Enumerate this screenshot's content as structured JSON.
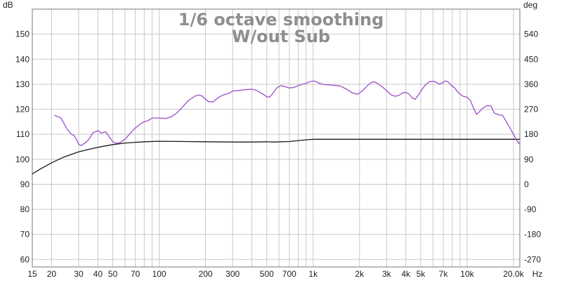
{
  "chart_data": {
    "type": "line",
    "title": "1/6 octave smoothing",
    "subtitle": "W/out Sub",
    "x_scale": "log",
    "xlim": [
      15,
      22000
    ],
    "ylim": [
      57,
      160
    ],
    "y2lim": [
      -297,
      630
    ],
    "y_unit": "dB",
    "y2_unit": "deg",
    "x_unit": "Hz",
    "grid": true,
    "x_ticks": [
      {
        "v": 15,
        "label": "15"
      },
      {
        "v": 20,
        "label": "20"
      },
      {
        "v": 30,
        "label": "30"
      },
      {
        "v": 40,
        "label": "40"
      },
      {
        "v": 50,
        "label": "50"
      },
      {
        "v": 70,
        "label": "70"
      },
      {
        "v": 100,
        "label": "100"
      },
      {
        "v": 200,
        "label": "200"
      },
      {
        "v": 300,
        "label": "300"
      },
      {
        "v": 500,
        "label": "500"
      },
      {
        "v": 700,
        "label": "700"
      },
      {
        "v": 1000,
        "label": "1k"
      },
      {
        "v": 2000,
        "label": "2k"
      },
      {
        "v": 3000,
        "label": "3k"
      },
      {
        "v": 4000,
        "label": "4k"
      },
      {
        "v": 5000,
        "label": "5k"
      },
      {
        "v": 7000,
        "label": "7k"
      },
      {
        "v": 10000,
        "label": "10k"
      },
      {
        "v": 20000,
        "label": "20.0k"
      }
    ],
    "x_grid": [
      15,
      20,
      30,
      40,
      50,
      60,
      70,
      80,
      90,
      100,
      200,
      300,
      400,
      500,
      600,
      700,
      800,
      900,
      1000,
      2000,
      3000,
      4000,
      5000,
      6000,
      7000,
      8000,
      9000,
      10000,
      20000
    ],
    "y_ticks": [
      {
        "v": 150,
        "label": "150"
      },
      {
        "v": 140,
        "label": "140"
      },
      {
        "v": 130,
        "label": "130"
      },
      {
        "v": 120,
        "label": "120"
      },
      {
        "v": 110,
        "label": "110"
      },
      {
        "v": 100,
        "label": "100"
      },
      {
        "v": 90,
        "label": "90"
      },
      {
        "v": 80,
        "label": "80"
      },
      {
        "v": 70,
        "label": "70"
      },
      {
        "v": 60,
        "label": "60"
      }
    ],
    "y2_ticks": [
      {
        "v": 540,
        "label": "540"
      },
      {
        "v": 450,
        "label": "450"
      },
      {
        "v": 360,
        "label": "360"
      },
      {
        "v": 270,
        "label": "270"
      },
      {
        "v": 180,
        "label": "180"
      },
      {
        "v": 90,
        "label": "90"
      },
      {
        "v": 0,
        "label": "0"
      },
      {
        "v": -90,
        "label": "-90"
      },
      {
        "v": -180,
        "label": "-180"
      },
      {
        "v": -270,
        "label": "-270"
      }
    ],
    "series": [
      {
        "axis": "left",
        "color": "#1a1a1a",
        "points": [
          [
            15,
            94.2
          ],
          [
            17,
            96.2
          ],
          [
            20,
            98.6
          ],
          [
            24,
            100.9
          ],
          [
            30,
            103.0
          ],
          [
            35,
            104.0
          ],
          [
            40,
            104.8
          ],
          [
            50,
            105.9
          ],
          [
            60,
            106.5
          ],
          [
            70,
            106.8
          ],
          [
            80,
            107.0
          ],
          [
            100,
            107.2
          ],
          [
            150,
            107.1
          ],
          [
            200,
            107.0
          ],
          [
            300,
            106.9
          ],
          [
            400,
            106.9
          ],
          [
            500,
            107.0
          ],
          [
            550,
            106.9
          ],
          [
            700,
            107.1
          ],
          [
            800,
            107.5
          ],
          [
            900,
            107.8
          ],
          [
            1000,
            108.0
          ],
          [
            2000,
            108.0
          ],
          [
            5000,
            108.0
          ],
          [
            10000,
            108.0
          ],
          [
            20000,
            108.0
          ],
          [
            22000,
            108.0
          ]
        ]
      },
      {
        "axis": "left",
        "color": "#9a4fc8",
        "points": [
          [
            21,
            117.5
          ],
          [
            22,
            117.0
          ],
          [
            23,
            116.5
          ],
          [
            24,
            114.5
          ],
          [
            25,
            112.5
          ],
          [
            26,
            111.0
          ],
          [
            27,
            110.0
          ],
          [
            28,
            109.5
          ],
          [
            29,
            108.0
          ],
          [
            30,
            106.0
          ],
          [
            31,
            105.5
          ],
          [
            33,
            106.5
          ],
          [
            35,
            108.0
          ],
          [
            37,
            110.5
          ],
          [
            40,
            111.5
          ],
          [
            42,
            110.5
          ],
          [
            45,
            111.0
          ],
          [
            48,
            108.5
          ],
          [
            50,
            107.0
          ],
          [
            52,
            106.5
          ],
          [
            55,
            106.5
          ],
          [
            60,
            108.0
          ],
          [
            65,
            110.5
          ],
          [
            70,
            112.5
          ],
          [
            75,
            114.0
          ],
          [
            80,
            115.0
          ],
          [
            85,
            115.5
          ],
          [
            90,
            116.5
          ],
          [
            100,
            116.5
          ],
          [
            110,
            116.3
          ],
          [
            120,
            117.0
          ],
          [
            130,
            118.5
          ],
          [
            140,
            120.5
          ],
          [
            155,
            123.5
          ],
          [
            170,
            125.2
          ],
          [
            180,
            125.7
          ],
          [
            190,
            125.3
          ],
          [
            200,
            124.0
          ],
          [
            210,
            123.0
          ],
          [
            225,
            123.0
          ],
          [
            240,
            124.5
          ],
          [
            260,
            125.7
          ],
          [
            280,
            126.2
          ],
          [
            300,
            127.3
          ],
          [
            330,
            127.5
          ],
          [
            360,
            127.8
          ],
          [
            400,
            128.0
          ],
          [
            430,
            127.5
          ],
          [
            460,
            126.5
          ],
          [
            500,
            125.0
          ],
          [
            520,
            124.8
          ],
          [
            550,
            126.5
          ],
          [
            580,
            128.5
          ],
          [
            620,
            129.5
          ],
          [
            660,
            129.0
          ],
          [
            700,
            128.5
          ],
          [
            750,
            128.7
          ],
          [
            800,
            129.5
          ],
          [
            850,
            130.0
          ],
          [
            900,
            130.3
          ],
          [
            950,
            131.0
          ],
          [
            1000,
            131.3
          ],
          [
            1050,
            131.0
          ],
          [
            1100,
            130.3
          ],
          [
            1200,
            129.8
          ],
          [
            1300,
            129.7
          ],
          [
            1400,
            129.5
          ],
          [
            1500,
            129.3
          ],
          [
            1650,
            128.0
          ],
          [
            1800,
            126.5
          ],
          [
            1950,
            126.0
          ],
          [
            2100,
            127.5
          ],
          [
            2300,
            130.0
          ],
          [
            2450,
            131.0
          ],
          [
            2600,
            130.5
          ],
          [
            2800,
            129.0
          ],
          [
            3000,
            127.5
          ],
          [
            3200,
            125.8
          ],
          [
            3400,
            125.2
          ],
          [
            3600,
            125.5
          ],
          [
            3800,
            126.5
          ],
          [
            4000,
            126.8
          ],
          [
            4200,
            126.0
          ],
          [
            4400,
            124.5
          ],
          [
            4600,
            124.0
          ],
          [
            4800,
            125.5
          ],
          [
            5100,
            128.0
          ],
          [
            5400,
            130.0
          ],
          [
            5700,
            131.0
          ],
          [
            6000,
            131.2
          ],
          [
            6300,
            130.8
          ],
          [
            6600,
            130.0
          ],
          [
            6900,
            130.5
          ],
          [
            7200,
            131.3
          ],
          [
            7500,
            131.0
          ],
          [
            7900,
            129.5
          ],
          [
            8300,
            128.5
          ],
          [
            8800,
            126.5
          ],
          [
            9400,
            125.2
          ],
          [
            10000,
            124.8
          ],
          [
            10500,
            123.5
          ],
          [
            11000,
            120.5
          ],
          [
            11500,
            118.0
          ],
          [
            12000,
            119.0
          ],
          [
            12700,
            120.5
          ],
          [
            13500,
            121.5
          ],
          [
            14300,
            121.3
          ],
          [
            15000,
            118.5
          ],
          [
            16000,
            117.8
          ],
          [
            17000,
            117.5
          ],
          [
            18000,
            115.0
          ],
          [
            19000,
            112.5
          ],
          [
            20000,
            110.0
          ],
          [
            21000,
            107.5
          ],
          [
            22000,
            106.0
          ]
        ]
      }
    ]
  }
}
